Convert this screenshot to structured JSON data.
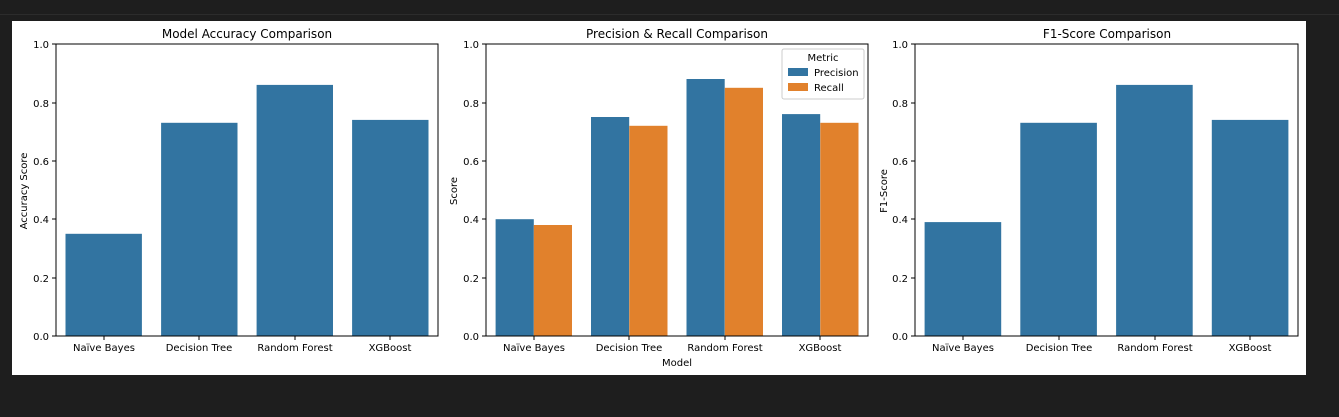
{
  "chart_data": [
    {
      "type": "bar",
      "title": "Model Accuracy Comparison",
      "xlabel": "",
      "ylabel": "Accuracy Score",
      "ylim": [
        0,
        1.0
      ],
      "yticks": [
        "0.0",
        "0.2",
        "0.4",
        "0.6",
        "0.8",
        "1.0"
      ],
      "categories": [
        "Naïve Bayes",
        "Decision Tree",
        "Random Forest",
        "XGBoost"
      ],
      "series": [
        {
          "values": [
            0.35,
            0.73,
            0.86,
            0.74
          ],
          "color": "#3274a1"
        }
      ],
      "grid": false
    },
    {
      "type": "bar",
      "title": "Precision & Recall Comparison",
      "xlabel": "Model",
      "ylabel": "Score",
      "ylim": [
        0,
        1.0
      ],
      "yticks": [
        "0.0",
        "0.2",
        "0.4",
        "0.6",
        "0.8",
        "1.0"
      ],
      "categories": [
        "Naïve Bayes",
        "Decision Tree",
        "Random Forest",
        "XGBoost"
      ],
      "series": [
        {
          "name": "Precision",
          "values": [
            0.4,
            0.75,
            0.88,
            0.76
          ],
          "color": "#3274a1"
        },
        {
          "name": "Recall",
          "values": [
            0.38,
            0.72,
            0.85,
            0.73
          ],
          "color": "#e1812c"
        }
      ],
      "legend": {
        "title": "Metric",
        "placement": "top-right"
      },
      "grid": false
    },
    {
      "type": "bar",
      "title": "F1-Score Comparison",
      "xlabel": "",
      "ylabel": "F1-Score",
      "ylim": [
        0,
        1.0
      ],
      "yticks": [
        "0.0",
        "0.2",
        "0.4",
        "0.6",
        "0.8",
        "1.0"
      ],
      "categories": [
        "Naïve Bayes",
        "Decision Tree",
        "Random Forest",
        "XGBoost"
      ],
      "series": [
        {
          "values": [
            0.39,
            0.73,
            0.86,
            0.74
          ],
          "color": "#3274a1"
        }
      ],
      "grid": false
    }
  ]
}
